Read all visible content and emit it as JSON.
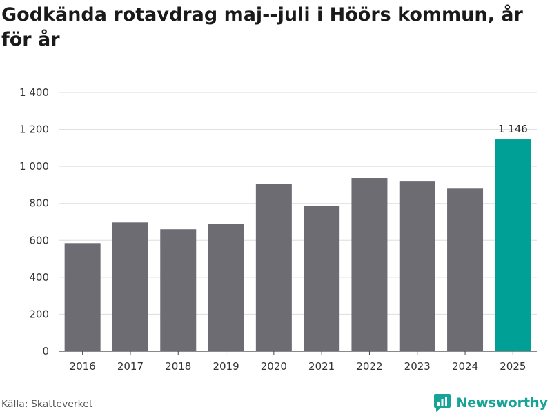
{
  "header": {
    "title": "Godkända rotavdrag maj--juli i Höörs kommun, år för år"
  },
  "footer": {
    "source": "Källa: Skatteverket",
    "brand": "Newsworthy"
  },
  "colors": {
    "bar": "#6d6c73",
    "highlight": "#00a096",
    "grid": "#dddddd",
    "axis": "#444444",
    "brand": "#17a398"
  },
  "chart_data": {
    "type": "bar",
    "title": "Godkända rotavdrag maj--juli i Höörs kommun, år för år",
    "xlabel": "",
    "ylabel": "",
    "categories": [
      "2016",
      "2017",
      "2018",
      "2019",
      "2020",
      "2021",
      "2022",
      "2023",
      "2024",
      "2025"
    ],
    "values": [
      585,
      697,
      660,
      690,
      907,
      787,
      937,
      918,
      880,
      1146
    ],
    "ylim": [
      0,
      1400
    ],
    "yticks": [
      0,
      200,
      400,
      600,
      800,
      1000,
      1200,
      1400
    ],
    "ytick_labels": [
      "0",
      "200",
      "400",
      "600",
      "800",
      "1 000",
      "1 200",
      "1 400"
    ],
    "highlight_index": 9,
    "data_labels": [
      {
        "index": 9,
        "text": "1 146"
      }
    ],
    "grid": true,
    "legend": "none"
  }
}
